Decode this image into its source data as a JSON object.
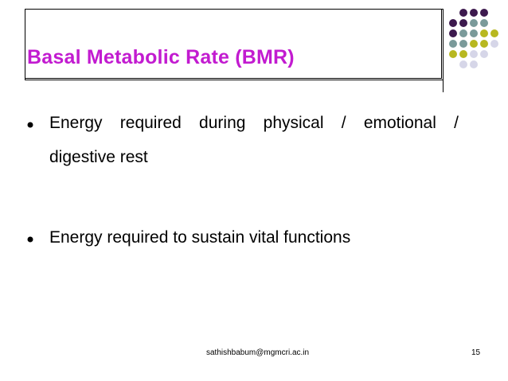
{
  "slide": {
    "title": "Basal Metabolic Rate (BMR)",
    "bullets": [
      {
        "line1_words": [
          "Energy",
          "required",
          "during",
          "physical",
          "/",
          "emotional",
          "/"
        ],
        "line2": "digestive rest"
      },
      {
        "line1": "Energy required to sustain vital functions"
      }
    ],
    "footer": {
      "email": "sathishbabum@mgmcri.ac.in",
      "page_number": "15"
    }
  },
  "colors": {
    "title": "#c21bd0",
    "dot_purple": "#3d1a4e",
    "dot_teal": "#7a9a9a",
    "dot_olive": "#b8b820",
    "dot_lavender": "#d6d6e8"
  }
}
